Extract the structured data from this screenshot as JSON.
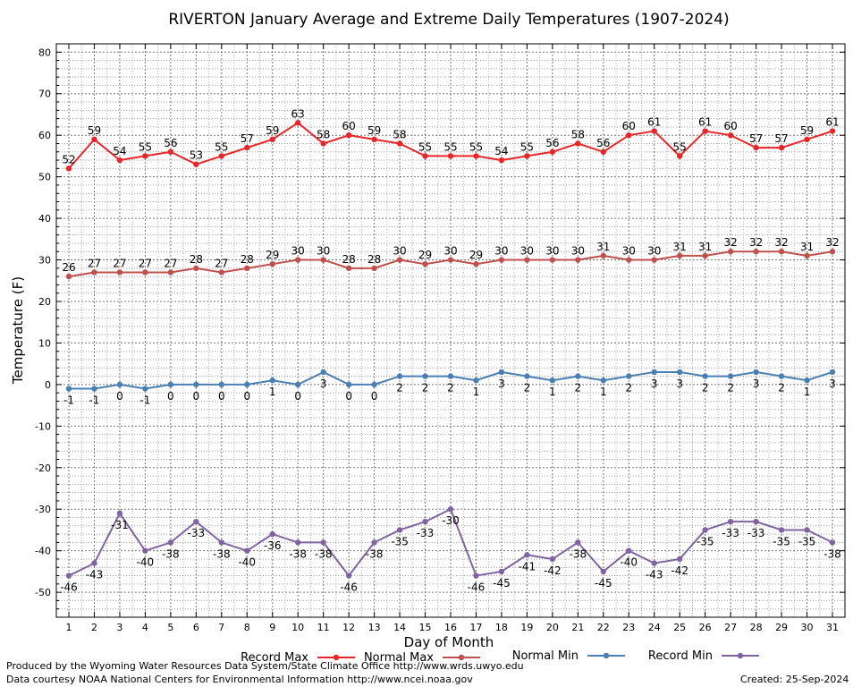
{
  "chart_data": {
    "type": "line",
    "title": "RIVERTON January Average and Extreme Daily Temperatures (1907-2024)",
    "xlabel": "Day of Month",
    "ylabel": "Temperature (F)",
    "ylim": [
      -56,
      82
    ],
    "yticks": [
      -50,
      -40,
      -30,
      -20,
      -10,
      0,
      10,
      20,
      30,
      40,
      50,
      60,
      70,
      80
    ],
    "x": [
      1,
      2,
      3,
      4,
      5,
      6,
      7,
      8,
      9,
      10,
      11,
      12,
      13,
      14,
      15,
      16,
      17,
      18,
      19,
      20,
      21,
      22,
      23,
      24,
      25,
      26,
      27,
      28,
      29,
      30,
      31
    ],
    "grid": true,
    "legend_position": "bottom",
    "series": [
      {
        "name": "Record Max",
        "color": "#e8262a",
        "label_pos": "above",
        "values": [
          52,
          59,
          54,
          55,
          56,
          53,
          55,
          57,
          59,
          63,
          58,
          60,
          59,
          58,
          55,
          55,
          55,
          54,
          55,
          56,
          58,
          56,
          60,
          61,
          55,
          61,
          60,
          57,
          57,
          59,
          61
        ]
      },
      {
        "name": "Normal Max",
        "color": "#c0504d",
        "label_pos": "above",
        "values": [
          26,
          27,
          27,
          27,
          27,
          28,
          27,
          28,
          29,
          30,
          30,
          28,
          28,
          30,
          29,
          30,
          29,
          30,
          30,
          30,
          30,
          31,
          30,
          30,
          31,
          31,
          32,
          32,
          32,
          31,
          32
        ]
      },
      {
        "name": "Normal Min",
        "color": "#4a7fb5",
        "label_pos": "below",
        "values": [
          -1,
          -1,
          0,
          -1,
          0,
          0,
          0,
          0,
          1,
          0,
          3,
          0,
          0,
          2,
          2,
          2,
          1,
          3,
          2,
          1,
          2,
          1,
          2,
          3,
          3,
          2,
          2,
          3,
          2,
          1,
          3
        ]
      },
      {
        "name": "Record Min",
        "color": "#8064a2",
        "label_pos": "below",
        "values": [
          -46,
          -43,
          -31,
          -40,
          -38,
          -33,
          -38,
          -40,
          -36,
          -38,
          -38,
          -46,
          -38,
          -35,
          -33,
          -30,
          -46,
          -45,
          -41,
          -42,
          -38,
          -45,
          -40,
          -43,
          -42,
          -35,
          -33,
          -33,
          -35,
          -35,
          -38
        ]
      }
    ]
  },
  "footer": {
    "produced_by": "Produced by the Wyoming Water Resources Data System/State Climate Office http://www.wrds.uwyo.edu",
    "courtesy": "Data courtesy NOAA National Centers for Environmental Information http://www.ncei.noaa.gov",
    "created": "Created: 25-Sep-2024"
  }
}
